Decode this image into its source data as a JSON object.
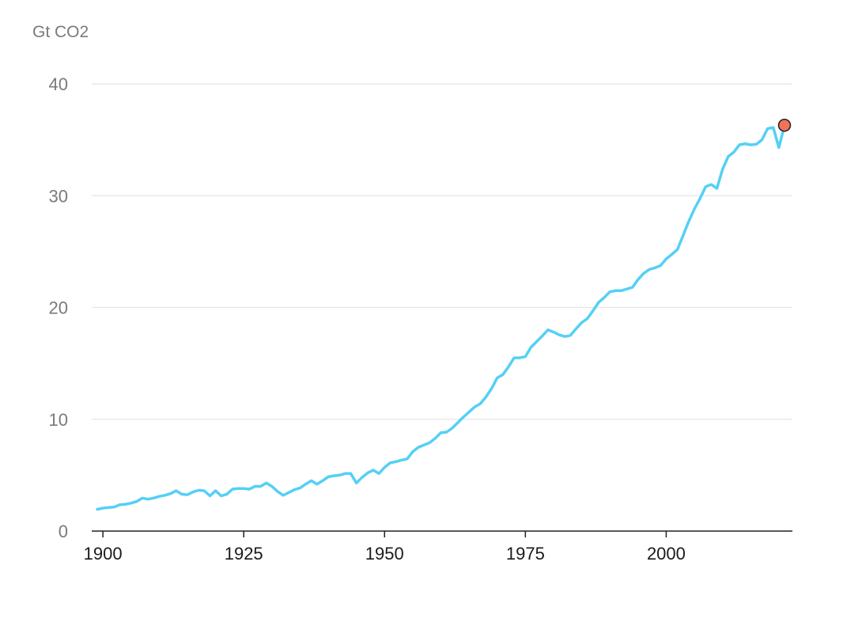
{
  "chart_data": {
    "type": "line",
    "title": "",
    "ylabel": "Gt CO2",
    "xlabel": "",
    "xlim": [
      1899,
      2021
    ],
    "ylim": [
      0,
      40
    ],
    "grid": true,
    "xticks": [
      1900,
      1925,
      1950,
      1975,
      2000
    ],
    "yticks": [
      0,
      10,
      20,
      30,
      40
    ],
    "colors": {
      "line": "#55d0f5",
      "marker": "#f0735a",
      "grid": "#e4e4e4",
      "axis": "#222222"
    },
    "series": [
      {
        "x": [
          1899,
          1900,
          1901,
          1902,
          1903,
          1904,
          1905,
          1906,
          1907,
          1908,
          1909,
          1910,
          1911,
          1912,
          1913,
          1914,
          1915,
          1916,
          1917,
          1918,
          1919,
          1920,
          1921,
          1922,
          1923,
          1924,
          1925,
          1926,
          1927,
          1928,
          1929,
          1930,
          1931,
          1932,
          1933,
          1934,
          1935,
          1936,
          1937,
          1938,
          1939,
          1940,
          1941,
          1942,
          1943,
          1944,
          1945,
          1946,
          1947,
          1948,
          1949,
          1950,
          1951,
          1952,
          1953,
          1954,
          1955,
          1956,
          1957,
          1958,
          1959,
          1960,
          1961,
          1962,
          1963,
          1964,
          1965,
          1966,
          1967,
          1968,
          1969,
          1970,
          1971,
          1972,
          1973,
          1974,
          1975,
          1976,
          1977,
          1978,
          1979,
          1980,
          1981,
          1982,
          1983,
          1984,
          1985,
          1986,
          1987,
          1988,
          1989,
          1990,
          1991,
          1992,
          1993,
          1994,
          1995,
          1996,
          1997,
          1998,
          1999,
          2000,
          2001,
          2002,
          2003,
          2004,
          2005,
          2006,
          2007,
          2008,
          2009,
          2010,
          2011,
          2012,
          2013,
          2014,
          2015,
          2016,
          2017,
          2018,
          2019,
          2020,
          2021
        ],
        "y": [
          1.95,
          2.05,
          2.1,
          2.15,
          2.35,
          2.4,
          2.5,
          2.65,
          2.95,
          2.85,
          2.95,
          3.1,
          3.2,
          3.35,
          3.6,
          3.3,
          3.25,
          3.5,
          3.65,
          3.6,
          3.15,
          3.6,
          3.15,
          3.3,
          3.75,
          3.8,
          3.8,
          3.75,
          4.0,
          4.0,
          4.3,
          4.0,
          3.55,
          3.2,
          3.45,
          3.7,
          3.85,
          4.2,
          4.5,
          4.2,
          4.5,
          4.85,
          4.95,
          5.0,
          5.15,
          5.15,
          4.3,
          4.8,
          5.2,
          5.45,
          5.15,
          5.7,
          6.1,
          6.2,
          6.35,
          6.45,
          7.1,
          7.5,
          7.7,
          7.9,
          8.3,
          8.8,
          8.85,
          9.2,
          9.7,
          10.2,
          10.65,
          11.1,
          11.4,
          12.0,
          12.75,
          13.7,
          14.0,
          14.7,
          15.5,
          15.5,
          15.6,
          16.45,
          16.95,
          17.45,
          18.0,
          17.8,
          17.55,
          17.4,
          17.5,
          18.1,
          18.65,
          19.0,
          19.7,
          20.45,
          20.9,
          21.4,
          21.5,
          21.5,
          21.65,
          21.8,
          22.5,
          23.05,
          23.4,
          23.55,
          23.75,
          24.35,
          24.75,
          25.2,
          26.45,
          27.7,
          28.8,
          29.75,
          30.8,
          31.0,
          30.65,
          32.35,
          33.5,
          33.9,
          34.55,
          34.65,
          34.55,
          34.6,
          35.0,
          36.0,
          36.1,
          34.3,
          36.3
        ]
      }
    ],
    "latest_point": {
      "x": 2021,
      "y": 36.3
    }
  }
}
